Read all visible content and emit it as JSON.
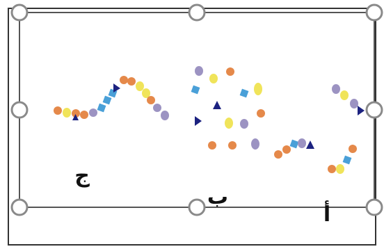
{
  "labels": {
    "alif": "أ",
    "ba": "ب",
    "jim": "ج"
  },
  "colors": {
    "orange": "#e5894a",
    "yellow": "#f0e45a",
    "lavender": "#9c93c2",
    "blue": "#4aa0d8",
    "navy": "#1c2280",
    "frame": "#333333",
    "handle_stroke": "#8a8a8a",
    "handle_fill": "#ffffff"
  }
}
